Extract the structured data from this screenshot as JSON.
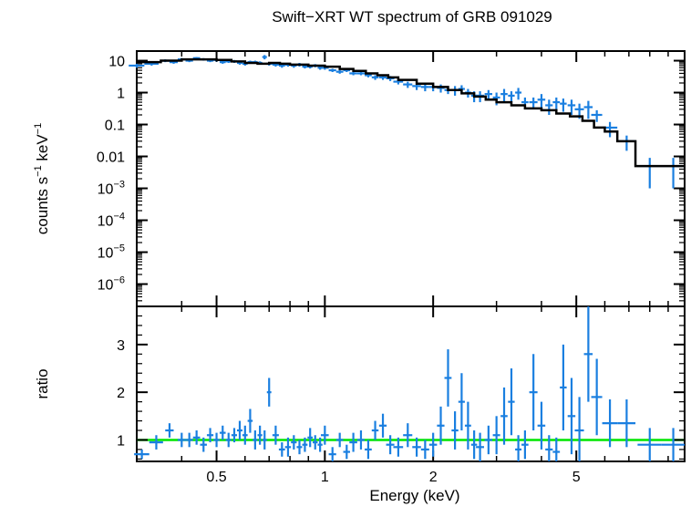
{
  "chart_data": [
    {
      "type": "scatter",
      "title": "Swift−XRT WT spectrum of GRB 091029",
      "xlabel": "",
      "ylabel_main": "counts s",
      "ylabel_sup1": "−1",
      "ylabel_mid": " keV",
      "ylabel_sup2": "−1",
      "xscale": "log",
      "yscale": "log",
      "xlim": [
        0.3,
        10
      ],
      "ylim": [
        2e-07,
        20
      ],
      "ytick_labels": [
        {
          "v": 10,
          "base": "10",
          "exp": ""
        },
        {
          "v": 1,
          "base": "1",
          "exp": ""
        },
        {
          "v": 0.1,
          "base": "0.1",
          "exp": ""
        },
        {
          "v": 0.01,
          "base": "0.01",
          "exp": ""
        },
        {
          "v": 0.001,
          "base": "10",
          "exp": "−3"
        },
        {
          "v": 0.0001,
          "base": "10",
          "exp": "−4"
        },
        {
          "v": 1e-05,
          "base": "10",
          "exp": "−5"
        },
        {
          "v": 1e-06,
          "base": "10",
          "exp": "−6"
        }
      ],
      "colors": {
        "data": "#1a7fe0",
        "model": "#000000"
      },
      "series": [
        {
          "x": [
            0.3,
            0.33,
            0.36,
            0.38,
            0.4,
            0.42,
            0.44,
            0.46,
            0.48,
            0.5,
            0.52,
            0.54,
            0.56,
            0.58,
            0.6,
            0.62,
            0.64,
            0.66,
            0.68,
            0.7,
            0.73,
            0.76,
            0.79,
            0.82,
            0.85,
            0.88,
            0.91,
            0.94,
            0.97,
            1.0,
            1.05,
            1.1,
            1.15,
            1.2,
            1.26,
            1.32,
            1.38,
            1.45,
            1.52,
            1.6,
            1.7,
            1.8,
            1.9,
            2.0,
            2.1,
            2.2,
            2.3,
            2.4,
            2.5,
            2.6,
            2.7,
            2.85,
            3.0,
            3.15,
            3.3,
            3.45,
            3.6,
            3.8,
            4.0,
            4.2,
            4.4,
            4.6,
            4.85,
            5.1,
            5.4,
            5.7,
            6.2,
            6.9,
            8.0,
            9.3
          ],
          "y": [
            7,
            8,
            10,
            9,
            11,
            10,
            12,
            11,
            10,
            10.5,
            9,
            9.5,
            9.5,
            8.5,
            8,
            9,
            9,
            8.5,
            13,
            8,
            7.5,
            7,
            7.5,
            7,
            7.5,
            6.5,
            6.5,
            7,
            6,
            6,
            5,
            4.5,
            5,
            4,
            4,
            3.5,
            3,
            3,
            2.8,
            2.2,
            1.8,
            1.6,
            1.5,
            1.5,
            1.4,
            1.2,
            1.2,
            1.3,
            1.0,
            0.8,
            0.8,
            0.9,
            0.7,
            0.9,
            0.8,
            1.0,
            0.5,
            0.5,
            0.6,
            0.4,
            0.5,
            0.45,
            0.4,
            0.3,
            0.35,
            0.2,
            0.08,
            0.03,
            0.005,
            0.005
          ],
          "yerr": [
            1,
            1,
            1,
            1,
            1,
            1,
            1,
            1,
            1,
            1,
            1,
            1,
            1,
            1,
            1,
            1,
            1,
            1,
            2,
            1,
            1,
            1,
            1,
            1,
            1,
            0.8,
            0.8,
            0.8,
            0.8,
            0.8,
            0.6,
            0.6,
            0.6,
            0.5,
            0.5,
            0.5,
            0.5,
            0.5,
            0.5,
            0.4,
            0.4,
            0.4,
            0.4,
            0.4,
            0.4,
            0.3,
            0.4,
            0.4,
            0.3,
            0.3,
            0.3,
            0.3,
            0.3,
            0.4,
            0.3,
            0.4,
            0.2,
            0.2,
            0.3,
            0.2,
            0.2,
            0.2,
            0.2,
            0.15,
            0.2,
            0.08,
            0.04,
            0.015,
            0.004,
            0.004
          ],
          "xerr": [
            0.015,
            0.015,
            0.01,
            0.01,
            0.01,
            0.01,
            0.01,
            0.01,
            0.01,
            0.01,
            0.01,
            0.01,
            0.01,
            0.01,
            0.01,
            0.01,
            0.01,
            0.01,
            0.01,
            0.015,
            0.015,
            0.015,
            0.015,
            0.015,
            0.015,
            0.015,
            0.015,
            0.015,
            0.015,
            0.025,
            0.025,
            0.025,
            0.025,
            0.03,
            0.03,
            0.03,
            0.03,
            0.035,
            0.04,
            0.05,
            0.05,
            0.05,
            0.05,
            0.05,
            0.05,
            0.05,
            0.05,
            0.05,
            0.05,
            0.05,
            0.07,
            0.07,
            0.07,
            0.07,
            0.07,
            0.07,
            0.08,
            0.1,
            0.1,
            0.1,
            0.1,
            0.1,
            0.12,
            0.15,
            0.15,
            0.2,
            0.3,
            0.4,
            0.6,
            0.7
          ]
        }
      ],
      "model": {
        "x": [
          0.3,
          0.35,
          0.4,
          0.45,
          0.5,
          0.55,
          0.6,
          0.65,
          0.7,
          0.75,
          0.8,
          0.9,
          1.0,
          1.1,
          1.2,
          1.3,
          1.4,
          1.5,
          1.6,
          1.8,
          2.0,
          2.2,
          2.4,
          2.6,
          2.8,
          3.0,
          3.3,
          3.6,
          4.0,
          4.4,
          4.8,
          5.2,
          5.6,
          6.0,
          6.5,
          7.3,
          7.3,
          10.0
        ],
        "y": [
          9,
          10,
          11,
          11,
          10.5,
          9.5,
          8.5,
          8,
          8.5,
          8,
          7.5,
          7,
          6.5,
          5.5,
          4.8,
          4.0,
          3.5,
          3.0,
          2.5,
          1.9,
          1.5,
          1.2,
          0.95,
          0.75,
          0.6,
          0.5,
          0.4,
          0.32,
          0.28,
          0.22,
          0.18,
          0.13,
          0.08,
          0.06,
          0.03,
          0.03,
          0.005,
          0.005
        ]
      }
    },
    {
      "type": "scatter",
      "xlabel": "Energy (keV)",
      "ylabel": "ratio",
      "xscale": "log",
      "xlim": [
        0.3,
        10
      ],
      "ylim": [
        0.55,
        3.8
      ],
      "yticks": [
        1,
        2,
        3
      ],
      "ytick_labels": [
        "1",
        "2",
        "3"
      ],
      "xticks": [
        0.5,
        1,
        2,
        5
      ],
      "xtick_labels": [
        "0.5",
        "1",
        "2",
        "5"
      ],
      "reference_line": {
        "y": 1,
        "color": "#00e600"
      },
      "colors": {
        "data": "#1a7fe0"
      },
      "series": [
        {
          "x": [
            0.31,
            0.34,
            0.37,
            0.4,
            0.42,
            0.44,
            0.46,
            0.48,
            0.5,
            0.52,
            0.54,
            0.56,
            0.58,
            0.6,
            0.62,
            0.64,
            0.66,
            0.68,
            0.7,
            0.73,
            0.76,
            0.79,
            0.82,
            0.85,
            0.88,
            0.91,
            0.94,
            0.97,
            1.0,
            1.05,
            1.1,
            1.15,
            1.2,
            1.26,
            1.32,
            1.38,
            1.45,
            1.52,
            1.6,
            1.7,
            1.8,
            1.9,
            2.0,
            2.1,
            2.2,
            2.3,
            2.4,
            2.5,
            2.6,
            2.7,
            2.85,
            3.0,
            3.15,
            3.3,
            3.45,
            3.6,
            3.8,
            4.0,
            4.2,
            4.4,
            4.6,
            4.85,
            5.1,
            5.4,
            5.7,
            6.2,
            6.9,
            8.0,
            9.3
          ],
          "y": [
            0.7,
            0.95,
            1.2,
            1.0,
            1.0,
            1.05,
            0.9,
            1.1,
            1.0,
            1.15,
            1.0,
            1.1,
            1.2,
            1.1,
            1.4,
            1.0,
            1.1,
            1.0,
            2.0,
            1.1,
            0.8,
            0.85,
            0.95,
            0.85,
            0.9,
            1.05,
            0.95,
            0.9,
            1.1,
            0.7,
            1.0,
            0.75,
            0.95,
            1.0,
            0.8,
            1.2,
            1.3,
            0.9,
            0.85,
            1.1,
            0.85,
            0.8,
            0.9,
            1.3,
            2.3,
            1.2,
            1.8,
            1.3,
            0.9,
            0.85,
            1.0,
            1.1,
            1.5,
            1.8,
            0.8,
            0.9,
            2.0,
            1.3,
            0.8,
            0.75,
            2.1,
            1.5,
            1.2,
            2.8,
            1.9,
            1.35,
            1.35,
            0.9,
            0.9
          ],
          "yerr": [
            0.1,
            0.15,
            0.15,
            0.15,
            0.15,
            0.15,
            0.15,
            0.15,
            0.15,
            0.15,
            0.15,
            0.15,
            0.2,
            0.2,
            0.25,
            0.2,
            0.2,
            0.2,
            0.3,
            0.2,
            0.15,
            0.2,
            0.15,
            0.15,
            0.15,
            0.2,
            0.15,
            0.15,
            0.2,
            0.15,
            0.15,
            0.15,
            0.2,
            0.2,
            0.2,
            0.2,
            0.25,
            0.2,
            0.2,
            0.25,
            0.2,
            0.2,
            0.25,
            0.4,
            0.6,
            0.4,
            0.6,
            0.5,
            0.3,
            0.3,
            0.3,
            0.4,
            0.6,
            0.7,
            0.3,
            0.3,
            0.8,
            0.5,
            0.3,
            0.3,
            0.9,
            0.8,
            0.7,
            1.0,
            0.8,
            0.5,
            0.5,
            0.35,
            0.35
          ],
          "xerr": [
            0.015,
            0.015,
            0.01,
            0.01,
            0.01,
            0.01,
            0.01,
            0.01,
            0.01,
            0.01,
            0.01,
            0.01,
            0.01,
            0.01,
            0.01,
            0.01,
            0.01,
            0.01,
            0.01,
            0.015,
            0.015,
            0.015,
            0.015,
            0.015,
            0.015,
            0.015,
            0.015,
            0.015,
            0.025,
            0.025,
            0.025,
            0.025,
            0.03,
            0.03,
            0.03,
            0.03,
            0.035,
            0.04,
            0.05,
            0.05,
            0.05,
            0.05,
            0.05,
            0.05,
            0.05,
            0.05,
            0.05,
            0.05,
            0.05,
            0.07,
            0.07,
            0.07,
            0.07,
            0.07,
            0.07,
            0.08,
            0.1,
            0.1,
            0.1,
            0.1,
            0.1,
            0.12,
            0.15,
            0.15,
            0.2,
            0.3,
            0.4,
            0.6,
            0.7
          ]
        }
      ]
    }
  ]
}
